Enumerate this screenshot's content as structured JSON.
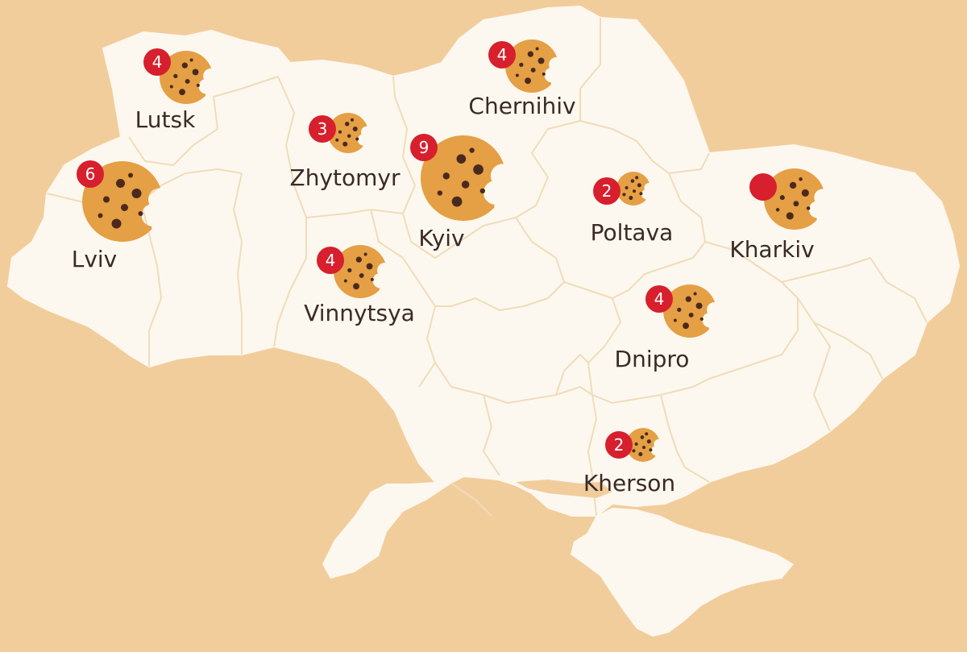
{
  "colors": {
    "background": "#f2cd9c",
    "land": "#fdf8ef",
    "border": "#f0dcba",
    "cookie": "#e59f45",
    "chip": "#4a2a1c",
    "badge": "#d71f2d",
    "label": "#3a2a26"
  },
  "icons": {
    "cookie": "bitten-cookie-icon",
    "badge": "count-badge"
  },
  "cities": [
    {
      "id": "lutsk",
      "name": "Lutsk",
      "count": "4"
    },
    {
      "id": "chernihiv",
      "name": "Chernihiv",
      "count": "4"
    },
    {
      "id": "zhytomyr",
      "name": "Zhytomyr",
      "count": "3"
    },
    {
      "id": "kyiv",
      "name": "Kyiv",
      "count": "9"
    },
    {
      "id": "lviv",
      "name": "Lviv",
      "count": "6"
    },
    {
      "id": "poltava",
      "name": "Poltava",
      "count": "2"
    },
    {
      "id": "kharkiv",
      "name": "Kharkiv",
      "count": ""
    },
    {
      "id": "vinnytsya",
      "name": "Vinnytsya",
      "count": "4"
    },
    {
      "id": "dnipro",
      "name": "Dnipro",
      "count": "4"
    },
    {
      "id": "kherson",
      "name": "Kherson",
      "count": "2"
    }
  ]
}
